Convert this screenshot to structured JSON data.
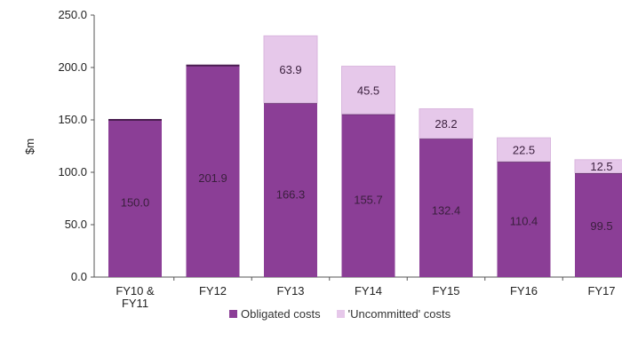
{
  "chart_data": {
    "type": "bar",
    "stacked": true,
    "ylabel": "$m",
    "ylim": [
      0,
      250
    ],
    "yticks": [
      "0.0",
      "50.0",
      "100.0",
      "150.0",
      "200.0",
      "250.0"
    ],
    "categories": [
      "FY10 & FY11",
      "FY12",
      "FY13",
      "FY14",
      "FY15",
      "FY16",
      "FY17"
    ],
    "series": [
      {
        "name": "Obligated costs",
        "color": "#8b3e96",
        "values": [
          150.0,
          201.9,
          166.3,
          155.7,
          132.4,
          110.4,
          99.5
        ],
        "labels": [
          "150.0",
          "201.9",
          "166.3",
          "155.7",
          "132.4",
          "110.4",
          "99.5"
        ]
      },
      {
        "name": "'Uncommitted' costs",
        "color": "#e6c8ea",
        "values": [
          0,
          0,
          63.9,
          45.5,
          28.2,
          22.5,
          12.5
        ],
        "labels": [
          "",
          "",
          "63.9",
          "45.5",
          "28.2",
          "22.5",
          "12.5"
        ]
      }
    ],
    "legend_position": "bottom",
    "grid": false
  }
}
